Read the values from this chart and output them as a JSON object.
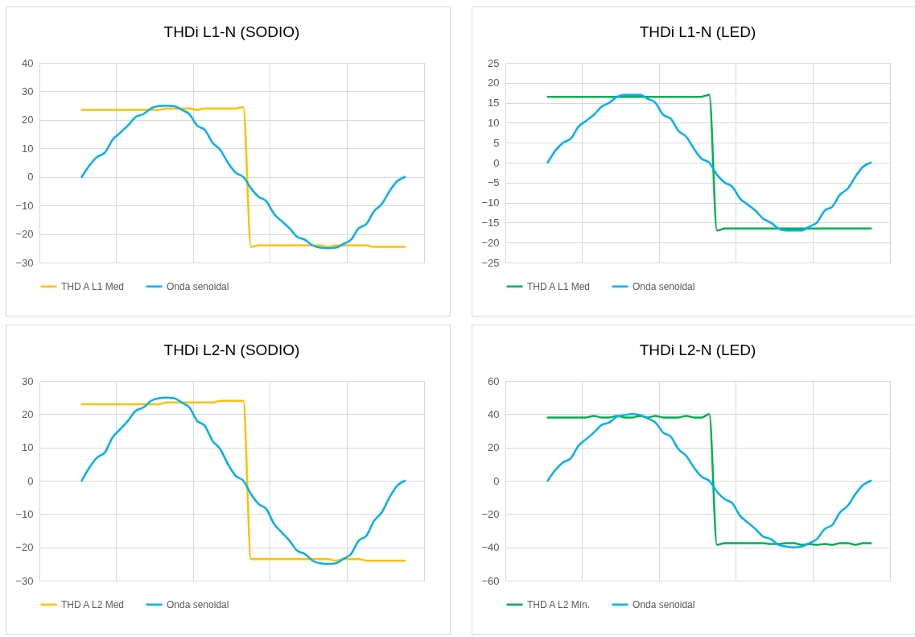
{
  "chart_data": [
    {
      "type": "line",
      "title": "THDi L1-N (SODIO)",
      "categories": [
        null,
        null,
        null,
        null,
        null,
        null,
        null,
        null,
        null,
        null,
        null,
        null,
        null,
        null,
        null,
        null,
        null,
        null,
        null,
        null,
        null,
        null,
        null,
        null,
        null,
        null,
        null,
        null,
        null,
        null,
        null,
        null,
        null,
        null,
        null,
        null,
        null,
        null,
        null,
        null,
        null,
        null,
        null,
        null,
        null,
        null,
        null,
        null,
        null,
        null
      ],
      "ylim": [
        -30,
        40
      ],
      "yticks": [
        -30,
        -20,
        -10,
        0,
        10,
        20,
        30,
        40
      ],
      "grid": true,
      "legend": "bottom",
      "tick_labels": "y",
      "series": [
        {
          "name": "THD A L1 Med",
          "color": "#ffc000",
          "values": [
            null,
            null,
            null,
            null,
            null,
            23.5,
            23.5,
            23.5,
            23.5,
            23.5,
            23.5,
            23.5,
            23.5,
            23.5,
            23.5,
            23.5,
            24,
            24,
            24,
            24,
            23.5,
            24,
            24,
            24,
            24,
            24,
            24.5,
            -24.5,
            -24,
            -24,
            -24,
            -24,
            -24,
            -24,
            -24,
            -24,
            -24,
            -24.5,
            -24,
            -24,
            -24,
            -24,
            -24,
            -24.5,
            -24.5,
            -24.5,
            -24.5,
            -24.5,
            null,
            null
          ]
        },
        {
          "name": "Onda senoidal",
          "color": "#00b0f0",
          "values": [
            null,
            null,
            null,
            null,
            null,
            0,
            4,
            7,
            8.5,
            13,
            15.5,
            18,
            21,
            22,
            24,
            24.8,
            25,
            24.8,
            23.5,
            22,
            18,
            16.5,
            12,
            9.5,
            5,
            1.5,
            0,
            -4,
            -7,
            -8.5,
            -13,
            -15.5,
            -18,
            -21,
            -22,
            -24,
            -24.8,
            -25,
            -24.8,
            -23.5,
            -22,
            -18,
            -16.5,
            -12,
            -9.5,
            -5,
            -1.5,
            0,
            null,
            null
          ]
        }
      ]
    },
    {
      "type": "line",
      "title": "THDi L1-N (LED)",
      "categories": [
        null,
        null,
        null,
        null,
        null,
        null,
        null,
        null,
        null,
        null,
        null,
        null,
        null,
        null,
        null,
        null,
        null,
        null,
        null,
        null,
        null,
        null,
        null,
        null,
        null,
        null,
        null,
        null,
        null,
        null,
        null,
        null,
        null,
        null,
        null,
        null,
        null,
        null,
        null,
        null,
        null,
        null,
        null,
        null,
        null,
        null,
        null,
        null,
        null,
        null
      ],
      "ylim": [
        -25,
        25
      ],
      "yticks": [
        -25,
        -20,
        -15,
        -10,
        -5,
        0,
        5,
        10,
        15,
        20,
        25
      ],
      "grid": true,
      "legend": "bottom",
      "tick_labels": "y",
      "series": [
        {
          "name": "THD A L1 Med",
          "color": "#00b050",
          "values": [
            null,
            null,
            null,
            null,
            null,
            16.5,
            16.5,
            16.5,
            16.5,
            16.5,
            16.5,
            16.5,
            16.5,
            16.5,
            16.5,
            16.5,
            16.5,
            16.5,
            16.5,
            16.5,
            16.5,
            16.5,
            16.5,
            16.5,
            16.5,
            16.5,
            17,
            -17,
            -16.5,
            -16.5,
            -16.5,
            -16.5,
            -16.5,
            -16.5,
            -16.5,
            -16.5,
            -16.5,
            -16.5,
            -16.5,
            -16.5,
            -16.5,
            -16.5,
            -16.5,
            -16.5,
            -16.5,
            -16.5,
            -16.5,
            -16.5,
            null,
            null
          ]
        },
        {
          "name": "Onda senoidal",
          "color": "#00b0f0",
          "values": [
            null,
            null,
            null,
            null,
            null,
            0,
            3,
            5,
            6,
            9,
            10.5,
            12,
            14,
            15,
            16.5,
            17,
            17,
            17,
            16,
            15,
            12,
            11,
            8,
            6.5,
            3.5,
            1,
            0,
            -3,
            -5,
            -6,
            -9,
            -10.5,
            -12,
            -14,
            -15,
            -16.5,
            -17,
            -17,
            -17,
            -16,
            -15,
            -12,
            -11,
            -8,
            -6.5,
            -3.5,
            -1,
            0,
            null,
            null
          ]
        }
      ]
    },
    {
      "type": "line",
      "title": "THDi L2-N (SODIO)",
      "categories": [
        null,
        null,
        null,
        null,
        null,
        null,
        null,
        null,
        null,
        null,
        null,
        null,
        null,
        null,
        null,
        null,
        null,
        null,
        null,
        null,
        null,
        null,
        null,
        null,
        null,
        null,
        null,
        null,
        null,
        null,
        null,
        null,
        null,
        null,
        null,
        null,
        null,
        null,
        null,
        null,
        null,
        null,
        null,
        null,
        null,
        null,
        null,
        null,
        null,
        null
      ],
      "ylim": [
        -30,
        30
      ],
      "yticks": [
        -30,
        -20,
        -10,
        0,
        10,
        20,
        30
      ],
      "grid": true,
      "legend": "bottom",
      "tick_labels": "y",
      "series": [
        {
          "name": "THD A L2 Med",
          "color": "#ffc000",
          "values": [
            null,
            null,
            null,
            null,
            null,
            23,
            23,
            23,
            23,
            23,
            23,
            23,
            23,
            23,
            23,
            23,
            23.5,
            23.5,
            23.5,
            23.5,
            23.5,
            23.5,
            23.5,
            24,
            24,
            24,
            24,
            -23.5,
            -23.5,
            -23.5,
            -23.5,
            -23.5,
            -23.5,
            -23.5,
            -23.5,
            -23.5,
            -23.5,
            -23.5,
            -24,
            -23.5,
            -23.5,
            -23.5,
            -24,
            -24,
            -24,
            -24,
            -24,
            -24,
            null,
            null
          ]
        },
        {
          "name": "Onda senoidal",
          "color": "#00b0f0",
          "values": [
            null,
            null,
            null,
            null,
            null,
            0,
            4,
            7,
            8.5,
            13,
            15.5,
            18,
            21,
            22,
            24,
            24.8,
            25,
            24.8,
            23.5,
            22,
            18,
            16.5,
            12,
            9.5,
            5,
            1.5,
            0,
            -4,
            -7,
            -8.5,
            -13,
            -15.5,
            -18,
            -21,
            -22,
            -24,
            -24.8,
            -25,
            -24.8,
            -23.5,
            -22,
            -18,
            -16.5,
            -12,
            -9.5,
            -5,
            -1.5,
            0,
            null,
            null
          ]
        }
      ]
    },
    {
      "type": "line",
      "title": "THDi L2-N (LED)",
      "categories": [
        null,
        null,
        null,
        null,
        null,
        null,
        null,
        null,
        null,
        null,
        null,
        null,
        null,
        null,
        null,
        null,
        null,
        null,
        null,
        null,
        null,
        null,
        null,
        null,
        null,
        null,
        null,
        null,
        null,
        null,
        null,
        null,
        null,
        null,
        null,
        null,
        null,
        null,
        null,
        null,
        null,
        null,
        null,
        null,
        null,
        null,
        null,
        null,
        null,
        null
      ],
      "ylim": [
        -60,
        60
      ],
      "yticks": [
        -60,
        -40,
        -20,
        0,
        20,
        40,
        60
      ],
      "grid": true,
      "legend": "bottom",
      "tick_labels": "y",
      "series": [
        {
          "name": "THD A L2 Mín.",
          "color": "#00b050",
          "values": [
            null,
            null,
            null,
            null,
            null,
            38,
            38,
            38,
            38,
            38,
            38,
            39,
            38,
            38,
            39,
            38,
            38,
            39,
            38,
            39,
            38,
            38,
            38,
            39,
            38,
            38,
            40,
            -38.5,
            -37.5,
            -37.5,
            -37.5,
            -37.5,
            -37.5,
            -37.5,
            -38,
            -38,
            -37.5,
            -37.5,
            -38.5,
            -38,
            -38.5,
            -38,
            -38.5,
            -37.5,
            -37.5,
            -38.5,
            -37.5,
            -37.5,
            null,
            null
          ]
        },
        {
          "name": "Onda senoidal",
          "color": "#00b0f0",
          "values": [
            null,
            null,
            null,
            null,
            null,
            0,
            6.5,
            11,
            13.5,
            21,
            25,
            29,
            33.5,
            35,
            38.5,
            39.5,
            40,
            39.5,
            37.5,
            35,
            29,
            26.5,
            19,
            15,
            8,
            2.5,
            0,
            -6.5,
            -11,
            -13.5,
            -21,
            -25,
            -29,
            -33.5,
            -35,
            -38.5,
            -39.5,
            -40,
            -39.5,
            -37.5,
            -35,
            -29,
            -26.5,
            -19,
            -15,
            -8,
            -2.5,
            0,
            null,
            null
          ]
        }
      ]
    }
  ]
}
